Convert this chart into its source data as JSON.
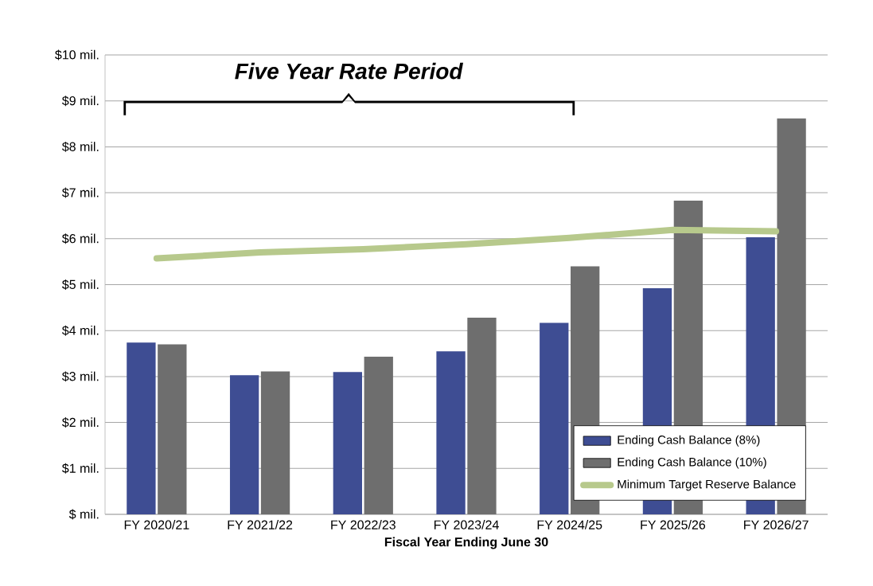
{
  "chart_data": {
    "type": "bar",
    "xlabel": "Fiscal Year Ending June 30",
    "categories": [
      "FY 2020/21",
      "FY 2021/22",
      "FY 2022/23",
      "FY 2023/24",
      "FY 2024/25",
      "FY 2025/26",
      "FY 2026/27"
    ],
    "series": [
      {
        "name": "Ending Cash Balance (8%)",
        "color": "#3e4d93",
        "values": [
          3.74,
          3.03,
          3.1,
          3.55,
          4.17,
          4.92,
          6.03
        ]
      },
      {
        "name": "Ending Cash Balance (10%)",
        "color": "#6e6e6e",
        "values": [
          3.7,
          3.11,
          3.43,
          4.28,
          5.4,
          6.83,
          8.62
        ]
      },
      {
        "name": "Minimum Target Reserve Balance",
        "type": "line",
        "color": "#b7c98c",
        "values": [
          5.57,
          5.7,
          5.77,
          5.88,
          6.02,
          6.19,
          6.16
        ]
      }
    ],
    "ylim": [
      0,
      10
    ],
    "yticks": [
      {
        "value": 0,
        "label": "$ mil."
      },
      {
        "value": 1,
        "label": "$1 mil."
      },
      {
        "value": 2,
        "label": "$2 mil."
      },
      {
        "value": 3,
        "label": "$3 mil."
      },
      {
        "value": 4,
        "label": "$4 mil."
      },
      {
        "value": 5,
        "label": "$5 mil."
      },
      {
        "value": 6,
        "label": "$6 mil."
      },
      {
        "value": 7,
        "label": "$7 mil."
      },
      {
        "value": 8,
        "label": "$8 mil."
      },
      {
        "value": 9,
        "label": "$9 mil."
      },
      {
        "value": 10,
        "label": "$10 mil."
      }
    ],
    "grid": "y",
    "legend": "bottom right",
    "annotations": [
      "Five Year Rate Period"
    ]
  }
}
